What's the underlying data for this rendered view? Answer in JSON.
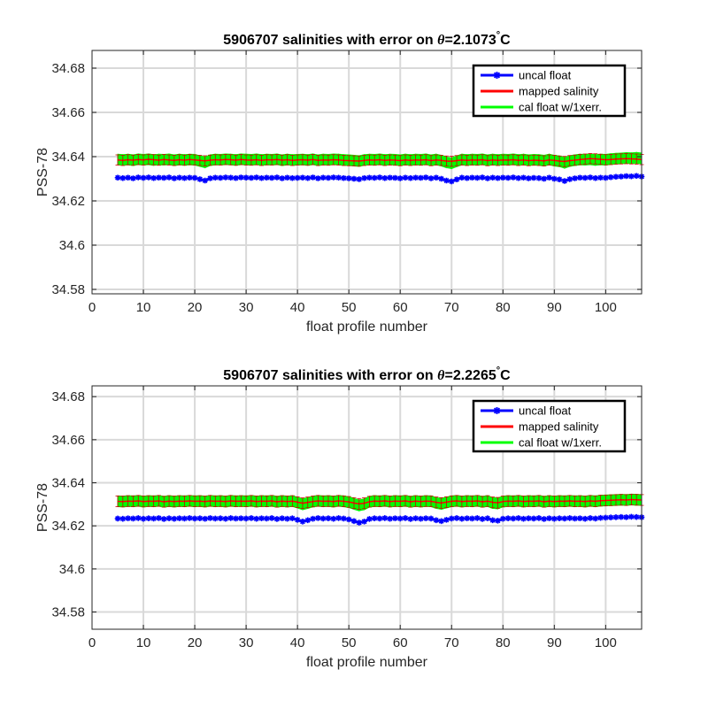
{
  "chart_data": [
    {
      "type": "line",
      "title": "5906707 salinities with error on θ=2.1073°C",
      "title_parts": {
        "prefix": "5906707 salinities with error on ",
        "symbol": "θ",
        "value": "=2.1073",
        "degree": "°",
        "unit": "C"
      },
      "xlabel": "float profile number",
      "ylabel": "PSS-78",
      "xlim": [
        0,
        107
      ],
      "ylim": [
        34.578,
        34.688
      ],
      "xticks": [
        0,
        10,
        20,
        30,
        40,
        50,
        60,
        70,
        80,
        90,
        100
      ],
      "xtick_labels": [
        "0",
        "10",
        "20",
        "30",
        "40",
        "50",
        "60",
        "70",
        "80",
        "90",
        "100"
      ],
      "yticks": [
        34.58,
        34.6,
        34.62,
        34.64,
        34.66,
        34.68
      ],
      "ytick_labels": [
        "34.58",
        "34.6",
        "34.62",
        "34.64",
        "34.66",
        "34.68"
      ],
      "grid": true,
      "legend_position": "top-right",
      "x_start": 5,
      "series": [
        {
          "name": "uncal float",
          "color": "#0000ff",
          "marker": "asterisk",
          "gaps_after_profile": [
            52,
            86,
            88,
            91,
            99
          ],
          "values": [
            34.6305,
            34.6303,
            34.6305,
            34.6302,
            34.6306,
            34.6304,
            34.6306,
            34.6303,
            34.6305,
            34.6304,
            34.6306,
            34.6302,
            34.6305,
            34.6303,
            34.6305,
            34.6304,
            34.6298,
            34.6292,
            34.6302,
            34.6305,
            34.6304,
            34.6306,
            34.6305,
            34.6303,
            34.6306,
            34.6305,
            34.6304,
            34.6306,
            34.6303,
            34.6305,
            34.6304,
            34.6306,
            34.6302,
            34.6305,
            34.6303,
            34.6304,
            34.6305,
            34.6303,
            34.6306,
            34.6302,
            34.6305,
            34.6304,
            34.6306,
            34.6305,
            34.6303,
            34.6302,
            34.63,
            34.6298,
            34.6303,
            34.6305,
            34.6304,
            34.6306,
            34.6303,
            34.6305,
            34.6304,
            34.6302,
            34.6305,
            34.6303,
            34.6305,
            34.6304,
            34.6306,
            34.6302,
            34.6305,
            34.63,
            34.6292,
            34.6288,
            34.6297,
            34.6305,
            34.6303,
            34.6305,
            34.6304,
            34.6306,
            34.6302,
            34.6305,
            34.6303,
            34.6305,
            34.6304,
            34.6306,
            34.6303,
            34.6305,
            34.6302,
            34.6304,
            34.6303,
            34.63,
            34.6305,
            34.63,
            34.6297,
            34.629,
            34.6298,
            34.6302,
            34.6305,
            34.6304,
            34.6306,
            34.6303,
            34.6305,
            34.6304,
            34.6307,
            34.6309,
            34.631,
            34.6312,
            34.6311,
            34.6313,
            34.631
          ]
        },
        {
          "name": "mapped salinity",
          "color": "#ff0000",
          "error": 0.0023,
          "values": [
            34.6385,
            34.6383,
            34.6386,
            34.6384,
            34.6387,
            34.6385,
            34.6388,
            34.6386,
            34.6384,
            34.6387,
            34.6385,
            34.6383,
            34.6386,
            34.6384,
            34.6387,
            34.6385,
            34.6383,
            34.6381,
            34.6384,
            34.6386,
            34.6385,
            34.6387,
            34.6386,
            34.6384,
            34.6387,
            34.6385,
            34.6384,
            34.6386,
            34.6383,
            34.6386,
            34.6385,
            34.6387,
            34.6384,
            34.6386,
            34.6383,
            34.6385,
            34.6386,
            34.6384,
            34.6387,
            34.6383,
            34.6385,
            34.6384,
            34.6386,
            34.6385,
            34.6383,
            34.6382,
            34.6381,
            34.638,
            34.6383,
            34.6385,
            34.6384,
            34.6386,
            34.6383,
            34.6385,
            34.6384,
            34.6382,
            34.6385,
            34.6383,
            34.6385,
            34.6384,
            34.6386,
            34.6382,
            34.6385,
            34.6383,
            34.638,
            34.6379,
            34.6382,
            34.6385,
            34.6383,
            34.6385,
            34.6384,
            34.6386,
            34.6382,
            34.6385,
            34.6383,
            34.6385,
            34.6384,
            34.6386,
            34.6383,
            34.6385,
            34.6382,
            34.6384,
            34.6383,
            34.6381,
            34.6385,
            34.6383,
            34.638,
            34.6378,
            34.6382,
            34.6384,
            34.6387,
            34.6389,
            34.6391,
            34.639,
            34.6388,
            34.6386,
            34.6387,
            34.6389,
            34.639,
            34.6391,
            34.639,
            34.6389,
            34.6387
          ]
        },
        {
          "name": "cal float w/1xerr.",
          "color": "#00ff00",
          "offset": 0.0082,
          "error": 0.0024
        }
      ]
    },
    {
      "type": "line",
      "title": "5906707 salinities with error on θ=2.2265°C",
      "title_parts": {
        "prefix": "5906707 salinities with error on ",
        "symbol": "θ",
        "value": "=2.2265",
        "degree": "°",
        "unit": "C"
      },
      "xlabel": "float profile number",
      "ylabel": "PSS-78",
      "xlim": [
        0,
        107
      ],
      "ylim": [
        34.572,
        34.685
      ],
      "xticks": [
        0,
        10,
        20,
        30,
        40,
        50,
        60,
        70,
        80,
        90,
        100
      ],
      "xtick_labels": [
        "0",
        "10",
        "20",
        "30",
        "40",
        "50",
        "60",
        "70",
        "80",
        "90",
        "100"
      ],
      "yticks": [
        34.58,
        34.6,
        34.62,
        34.64,
        34.66,
        34.68
      ],
      "ytick_labels": [
        "34.58",
        "34.6",
        "34.62",
        "34.64",
        "34.66",
        "34.68"
      ],
      "grid": true,
      "legend_position": "top-right",
      "x_start": 5,
      "series": [
        {
          "name": "uncal float",
          "color": "#0000ff",
          "marker": "asterisk",
          "gaps_after_profile": [],
          "values": [
            34.6234,
            34.6233,
            34.6235,
            34.6234,
            34.6236,
            34.6233,
            34.6235,
            34.6234,
            34.6236,
            34.6232,
            34.6235,
            34.6233,
            34.6235,
            34.6234,
            34.6236,
            34.6234,
            34.6235,
            34.6233,
            34.6236,
            34.6234,
            34.6235,
            34.6233,
            34.6236,
            34.6234,
            34.6235,
            34.6234,
            34.6236,
            34.6233,
            34.6235,
            34.6234,
            34.6236,
            34.6232,
            34.6235,
            34.6233,
            34.6235,
            34.6228,
            34.622,
            34.6226,
            34.6233,
            34.6236,
            34.6234,
            34.6235,
            34.6233,
            34.6236,
            34.6234,
            34.623,
            34.6222,
            34.6215,
            34.622,
            34.6232,
            34.6235,
            34.6234,
            34.6236,
            34.6233,
            34.6235,
            34.6234,
            34.6236,
            34.6232,
            34.6235,
            34.6233,
            34.6235,
            34.6234,
            34.6226,
            34.6222,
            34.6228,
            34.6234,
            34.6236,
            34.6233,
            34.6235,
            34.6234,
            34.6236,
            34.6232,
            34.6235,
            34.6226,
            34.6224,
            34.6233,
            34.6235,
            34.6234,
            34.6236,
            34.6233,
            34.6235,
            34.6234,
            34.6236,
            34.6232,
            34.6235,
            34.6233,
            34.6235,
            34.6234,
            34.6236,
            34.6234,
            34.6235,
            34.6233,
            34.6236,
            34.6234,
            34.6237,
            34.6238,
            34.6239,
            34.624,
            34.6241,
            34.624,
            34.6242,
            34.6241,
            34.624
          ]
        },
        {
          "name": "mapped salinity",
          "color": "#ff0000",
          "error": 0.0025,
          "values": [
            34.6314,
            34.6313,
            34.6315,
            34.6314,
            34.6316,
            34.6313,
            34.6315,
            34.6314,
            34.6316,
            34.6312,
            34.6315,
            34.6313,
            34.6315,
            34.6314,
            34.6316,
            34.6314,
            34.6315,
            34.6313,
            34.6316,
            34.6314,
            34.6315,
            34.6313,
            34.6316,
            34.6314,
            34.6315,
            34.6314,
            34.6316,
            34.6313,
            34.6315,
            34.6314,
            34.6316,
            34.6312,
            34.6315,
            34.6313,
            34.6315,
            34.631,
            34.6305,
            34.6309,
            34.6313,
            34.6316,
            34.6314,
            34.6315,
            34.6313,
            34.6316,
            34.6314,
            34.6311,
            34.6306,
            34.6302,
            34.6305,
            34.6312,
            34.6315,
            34.6314,
            34.6316,
            34.6313,
            34.6315,
            34.6314,
            34.6316,
            34.6312,
            34.6315,
            34.6313,
            34.6315,
            34.6314,
            34.6309,
            34.6306,
            34.631,
            34.6314,
            34.6316,
            34.6313,
            34.6315,
            34.6314,
            34.6316,
            34.6312,
            34.6315,
            34.6309,
            34.6307,
            34.6313,
            34.6315,
            34.6314,
            34.6316,
            34.6313,
            34.6315,
            34.6314,
            34.6316,
            34.6312,
            34.6315,
            34.6313,
            34.6315,
            34.6314,
            34.6316,
            34.6314,
            34.6315,
            34.6313,
            34.6316,
            34.6314,
            34.6317,
            34.6318,
            34.6319,
            34.632,
            34.6321,
            34.632,
            34.6322,
            34.6321,
            34.632
          ]
        },
        {
          "name": "cal float w/1xerr.",
          "color": "#00ff00",
          "offset": 0.008,
          "error": 0.0025
        }
      ]
    }
  ]
}
